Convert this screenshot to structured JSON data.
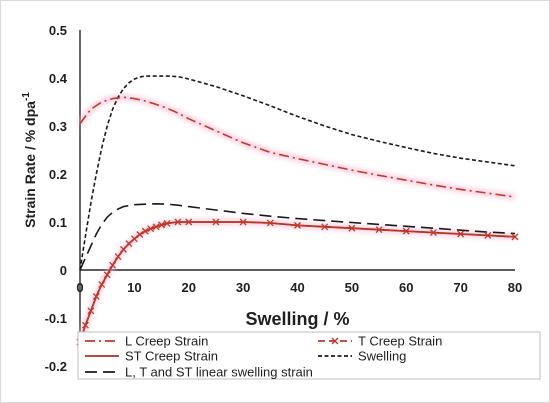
{
  "chart_data": {
    "type": "line",
    "title": "",
    "xlabel": "Swelling / %",
    "ylabel": "Strain Rate / % dpa",
    "ylabel_superscript": "-1",
    "xlim": [
      0,
      80
    ],
    "ylim": [
      -0.2,
      0.5
    ],
    "x_ticks": [
      "0",
      "10",
      "20",
      "30",
      "40",
      "50",
      "60",
      "70",
      "80"
    ],
    "y_ticks": [
      "-0.2",
      "-0.1",
      "0",
      "0.1",
      "0.2",
      "0.3",
      "0.4",
      "0.5"
    ],
    "grid": false,
    "legend_position": "bottom",
    "series": [
      {
        "name": "L Creep Strain",
        "color": "#c0392b",
        "dash": "dash-dot",
        "x": [
          0,
          1,
          2,
          4,
          6,
          8,
          10,
          12,
          14,
          16,
          18,
          20,
          25,
          30,
          35,
          40,
          45,
          50,
          55,
          60,
          65,
          70,
          75,
          80
        ],
        "y": [
          0.305,
          0.32,
          0.335,
          0.35,
          0.357,
          0.36,
          0.357,
          0.352,
          0.345,
          0.337,
          0.327,
          0.315,
          0.29,
          0.265,
          0.245,
          0.232,
          0.22,
          0.208,
          0.197,
          0.187,
          0.177,
          0.168,
          0.16,
          0.152
        ]
      },
      {
        "name": "T Creep Strain",
        "color": "#c0392b",
        "dash": "dash-marker",
        "x": [
          0,
          1,
          2,
          3,
          4,
          5,
          6,
          7,
          8,
          9,
          10,
          11,
          12,
          13,
          14,
          15,
          16,
          18,
          20,
          25,
          30,
          35,
          40,
          45,
          50,
          55,
          60,
          65,
          70,
          75,
          80
        ],
        "y": [
          -0.15,
          -0.115,
          -0.085,
          -0.055,
          -0.03,
          -0.01,
          0.01,
          0.028,
          0.043,
          0.055,
          0.065,
          0.074,
          0.081,
          0.086,
          0.09,
          0.094,
          0.097,
          0.1,
          0.1,
          0.1,
          0.1,
          0.098,
          0.093,
          0.09,
          0.087,
          0.084,
          0.081,
          0.078,
          0.075,
          0.072,
          0.069
        ]
      },
      {
        "name": "ST Creep Strain",
        "color": "#a93226",
        "dash": "solid",
        "x": [
          0,
          1,
          2,
          3,
          4,
          5,
          6,
          7,
          8,
          9,
          10,
          11,
          12,
          13,
          14,
          15,
          16,
          18,
          20,
          25,
          30,
          35,
          40,
          45,
          50,
          55,
          60,
          65,
          70,
          75,
          80
        ],
        "y": [
          -0.15,
          -0.115,
          -0.085,
          -0.055,
          -0.03,
          -0.01,
          0.01,
          0.028,
          0.043,
          0.055,
          0.065,
          0.074,
          0.081,
          0.086,
          0.09,
          0.094,
          0.097,
          0.1,
          0.1,
          0.1,
          0.1,
          0.098,
          0.093,
          0.09,
          0.087,
          0.084,
          0.081,
          0.078,
          0.075,
          0.072,
          0.069
        ]
      },
      {
        "name": "Swelling",
        "color": "#1a1a1a",
        "dash": "short-dash",
        "x": [
          0,
          1,
          2,
          3,
          4,
          5,
          6,
          7,
          8,
          9,
          10,
          11,
          12,
          14,
          16,
          18,
          20,
          25,
          30,
          35,
          40,
          45,
          50,
          55,
          60,
          65,
          70,
          75,
          80
        ],
        "y": [
          0.0,
          0.07,
          0.14,
          0.2,
          0.255,
          0.3,
          0.335,
          0.36,
          0.378,
          0.39,
          0.398,
          0.402,
          0.404,
          0.404,
          0.404,
          0.403,
          0.398,
          0.382,
          0.363,
          0.342,
          0.32,
          0.3,
          0.282,
          0.268,
          0.255,
          0.243,
          0.233,
          0.225,
          0.217
        ]
      },
      {
        "name": "L, T and ST linear swelling strain",
        "color": "#1a1a1a",
        "dash": "long-dash",
        "x": [
          0,
          1,
          2,
          3,
          4,
          5,
          6,
          7,
          8,
          10,
          12,
          14,
          16,
          18,
          20,
          25,
          30,
          35,
          40,
          45,
          50,
          55,
          60,
          65,
          70,
          75,
          80
        ],
        "y": [
          0.0,
          0.025,
          0.05,
          0.075,
          0.095,
          0.11,
          0.12,
          0.127,
          0.132,
          0.136,
          0.137,
          0.138,
          0.137,
          0.135,
          0.132,
          0.125,
          0.118,
          0.112,
          0.107,
          0.103,
          0.099,
          0.095,
          0.091,
          0.087,
          0.083,
          0.079,
          0.076
        ]
      }
    ],
    "legend": [
      {
        "label": "L Creep Strain",
        "series": 0
      },
      {
        "label": "T Creep Strain",
        "series": 1
      },
      {
        "label": "ST Creep Strain",
        "series": 2
      },
      {
        "label": "Swelling",
        "series": 3
      },
      {
        "label": "L, T and ST linear swelling strain",
        "series": 4
      }
    ]
  }
}
